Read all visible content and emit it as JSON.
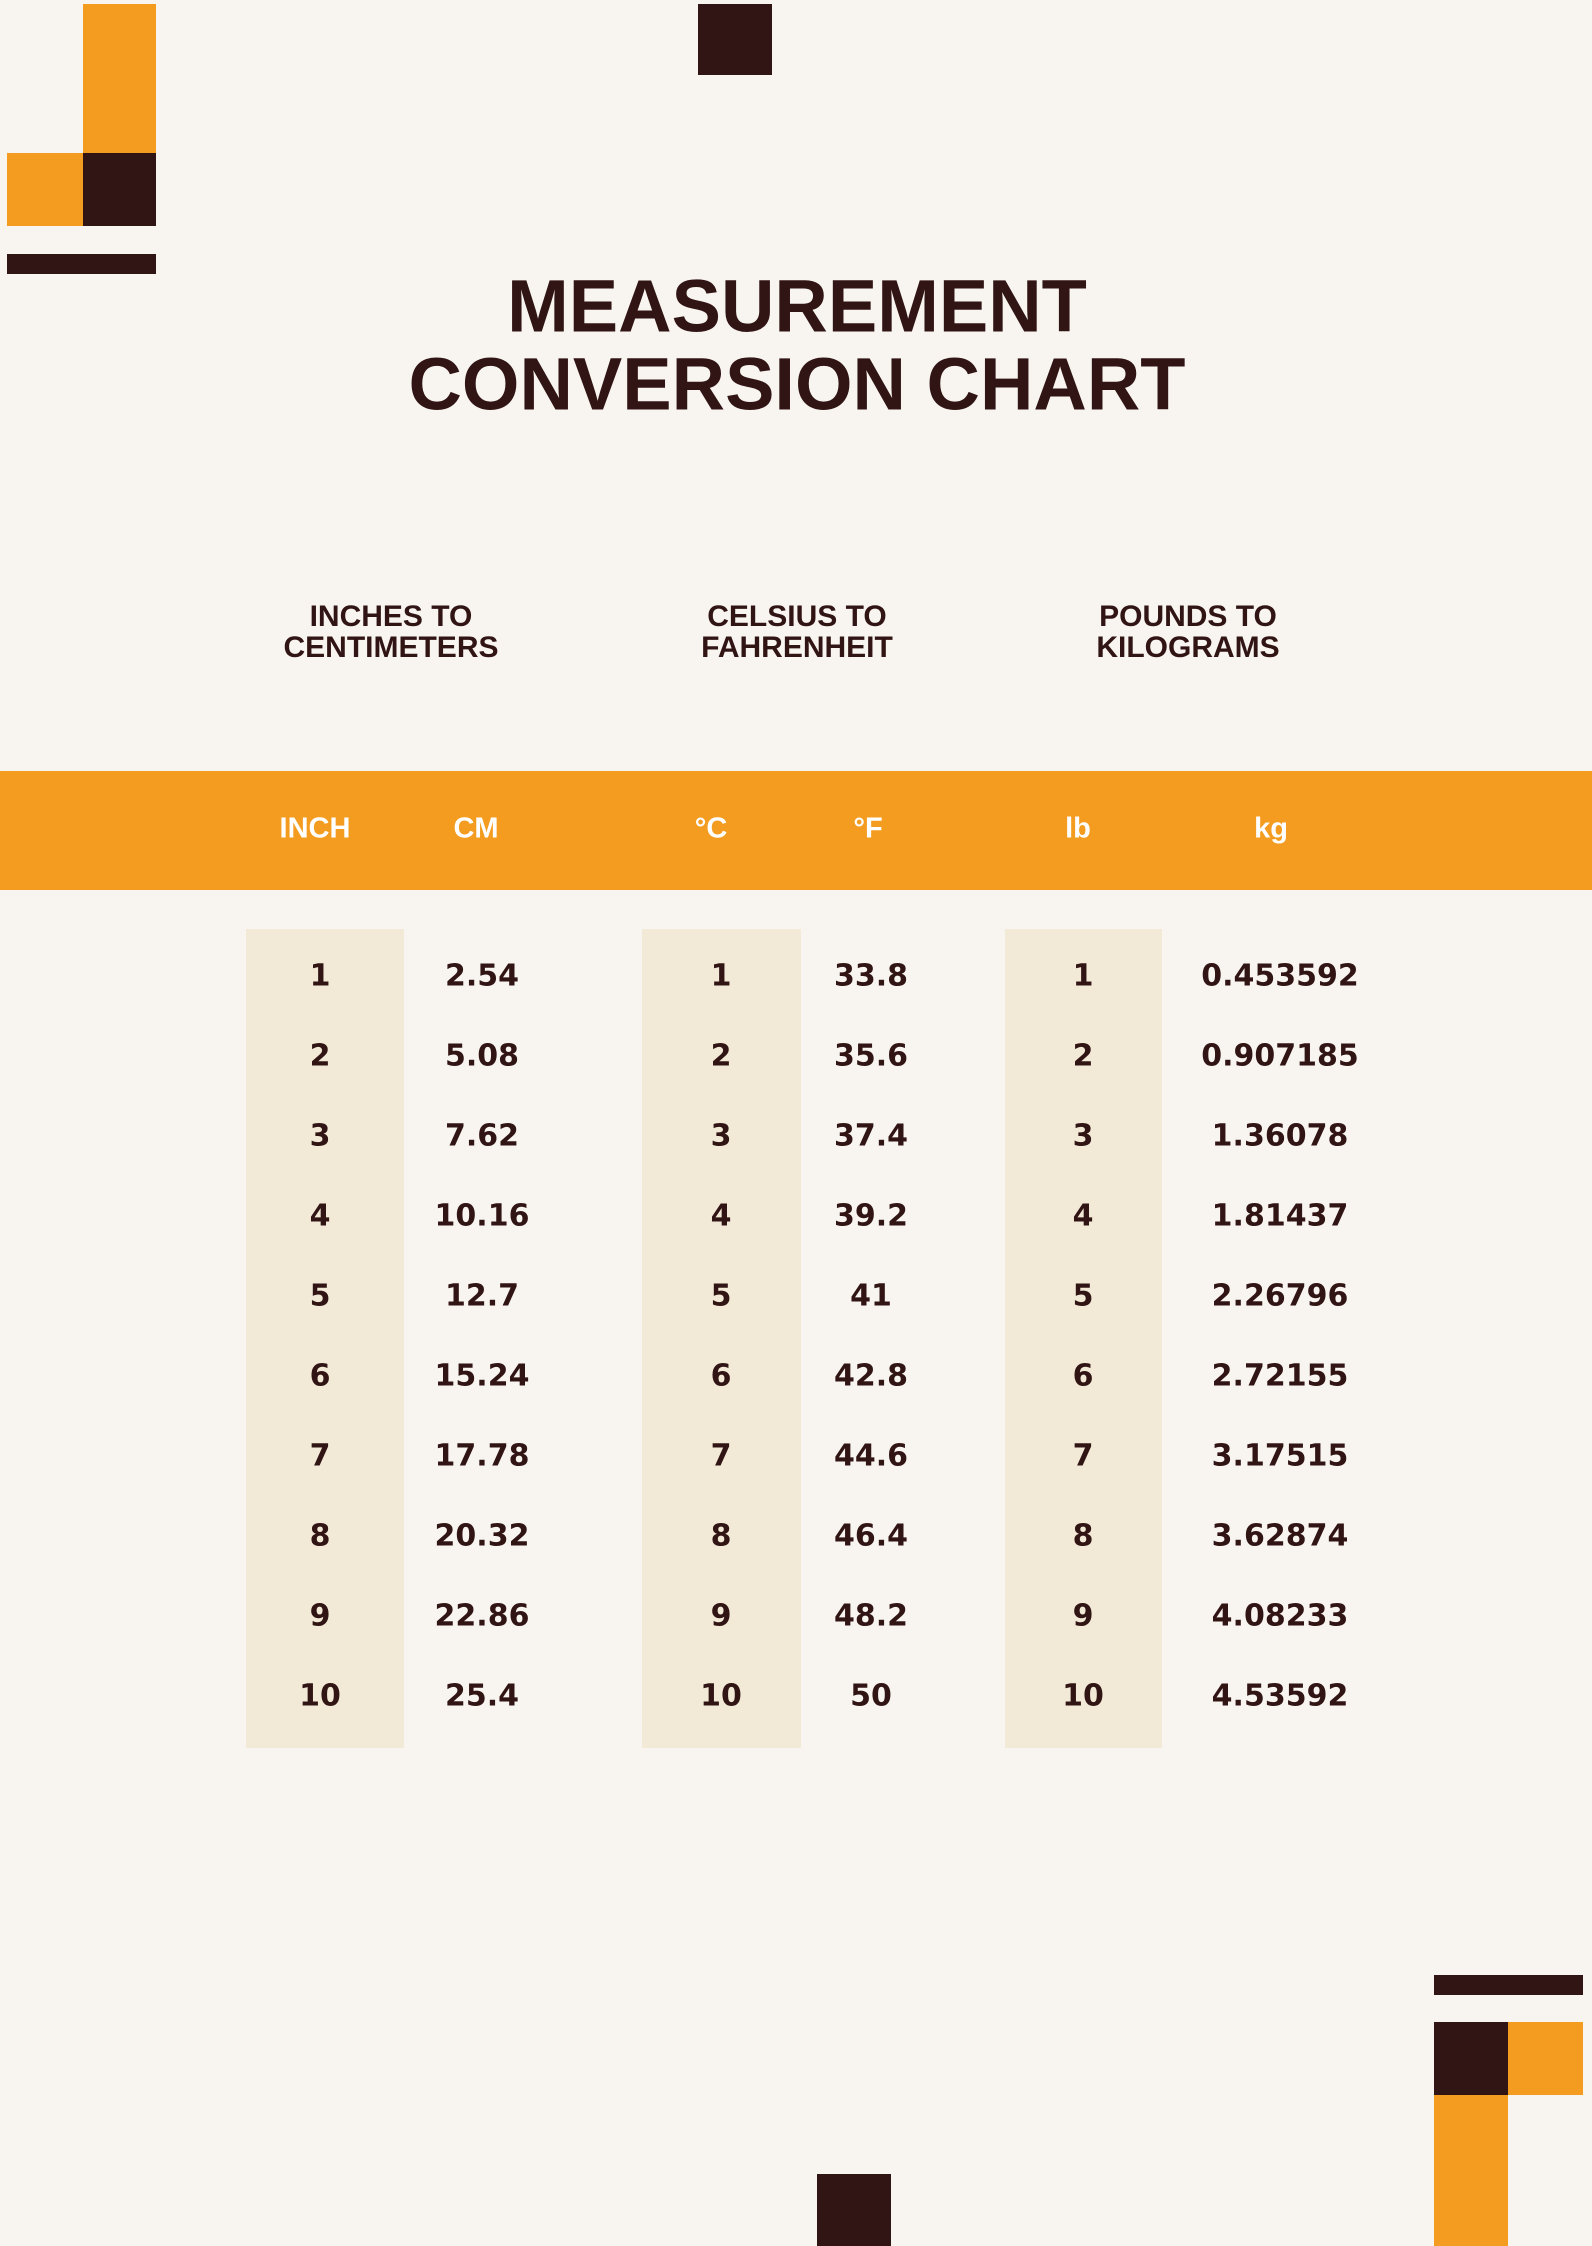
{
  "title": [
    "MEASUREMENT",
    "CONVERSION CHART"
  ],
  "sections": [
    [
      "INCHES TO",
      "CENTIMETERS"
    ],
    [
      "CELSIUS TO",
      "FAHRENHEIT"
    ],
    [
      "POUNDS TO",
      "KILOGRAMS"
    ]
  ],
  "table": {
    "headers": [
      "INCH",
      "CM",
      "°C",
      "°F",
      "lb",
      "kg"
    ],
    "rows": [
      [
        "1",
        "2.54",
        "1",
        "33.8",
        "1",
        "0.453592"
      ],
      [
        "2",
        "5.08",
        "2",
        "35.6",
        "2",
        "0.907185"
      ],
      [
        "3",
        "7.62",
        "3",
        "37.4",
        "3",
        "1.36078"
      ],
      [
        "4",
        "10.16",
        "4",
        "39.2",
        "4",
        "1.81437"
      ],
      [
        "5",
        "12.7",
        "5",
        "41",
        "5",
        "2.26796"
      ],
      [
        "6",
        "15.24",
        "6",
        "42.8",
        "6",
        "2.72155"
      ],
      [
        "7",
        "17.78",
        "7",
        "44.6",
        "7",
        "3.17515"
      ],
      [
        "8",
        "20.32",
        "8",
        "46.4",
        "8",
        "3.62874"
      ],
      [
        "9",
        "22.86",
        "9",
        "48.2",
        "9",
        "4.08233"
      ],
      [
        "10",
        "25.4",
        "10",
        "50",
        "10",
        "4.53592"
      ]
    ]
  }
}
